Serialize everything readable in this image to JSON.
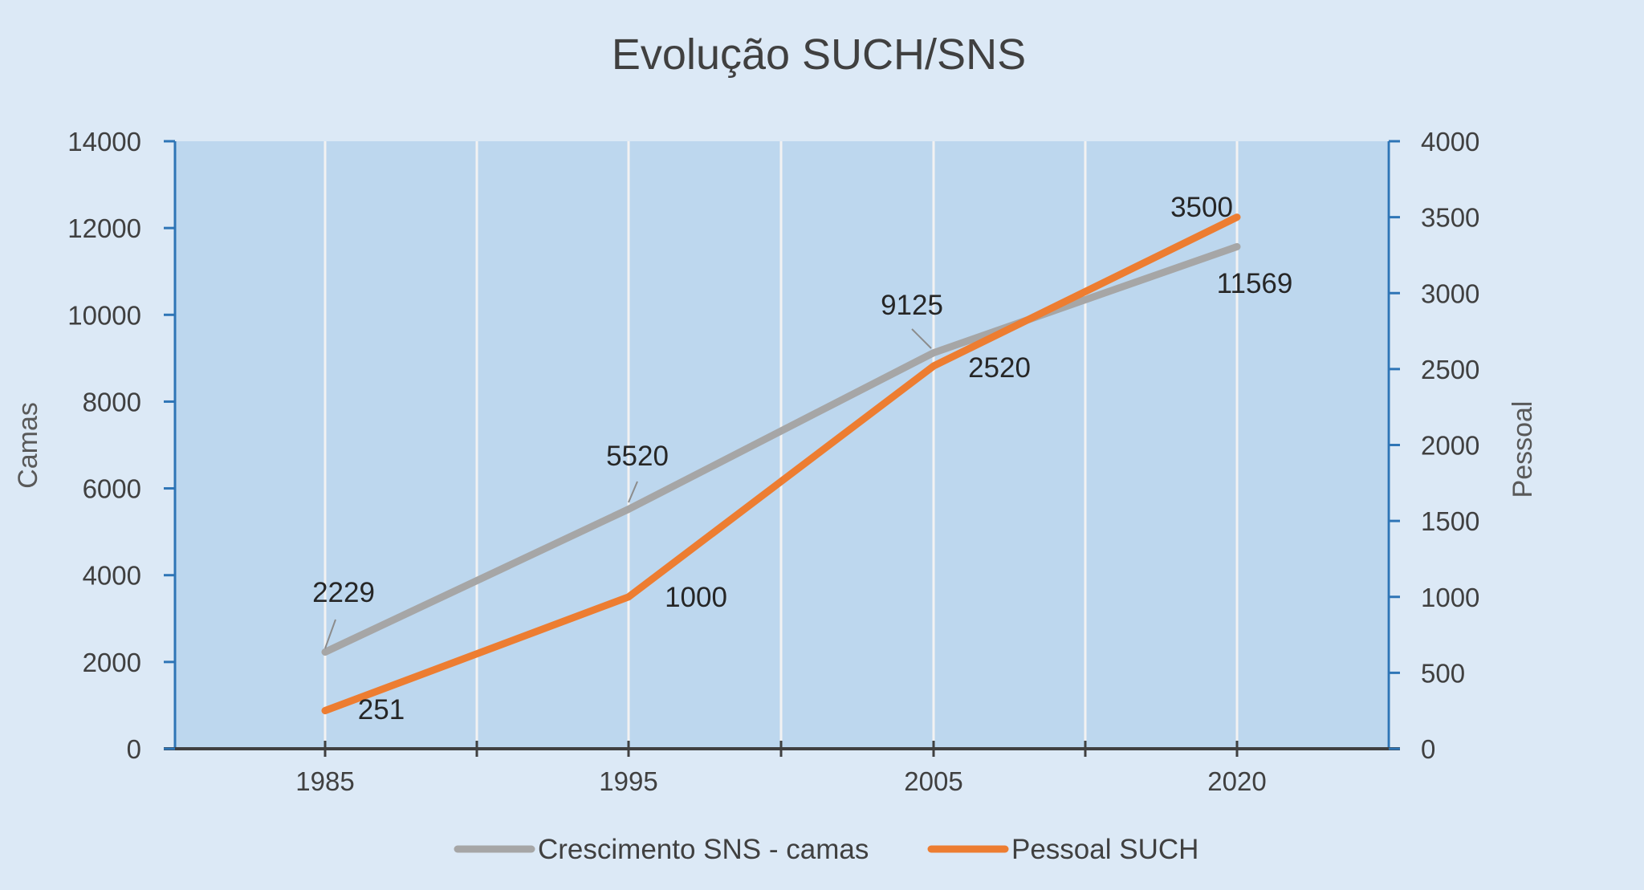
{
  "chart_data": {
    "type": "line",
    "title": "Evolução SUCH/SNS",
    "categories": [
      "1985",
      "1995",
      "2005",
      "2020"
    ],
    "y_left": {
      "label": "Camas",
      "ylim": [
        0,
        14000
      ],
      "ticks": [
        "0",
        "2000",
        "4000",
        "6000",
        "8000",
        "10000",
        "12000",
        "14000"
      ]
    },
    "y_right": {
      "label": "Pessoal",
      "ylim": [
        0,
        4000
      ],
      "ticks": [
        "0",
        "500",
        "1000",
        "1500",
        "2000",
        "2500",
        "3000",
        "3500",
        "4000"
      ]
    },
    "series": [
      {
        "name": "Crescimento SNS - camas",
        "axis": "left",
        "color": "#a6a6a6",
        "values": [
          2229,
          5520,
          9125,
          11569
        ],
        "labels": [
          "2229",
          "5520",
          "9125",
          "11569"
        ]
      },
      {
        "name": "Pessoal SUCH",
        "axis": "right",
        "color": "#ed7d31",
        "values": [
          251,
          1000,
          2520,
          3500
        ],
        "labels": [
          "251",
          "1000",
          "2520",
          "3500"
        ]
      }
    ],
    "grid": true,
    "legend": "bottom",
    "colors": {
      "background": "#dce9f6",
      "plot_area": "#bdd7ee",
      "axis_line": "#2e75b6",
      "gridline": "#f2f2f2"
    }
  }
}
